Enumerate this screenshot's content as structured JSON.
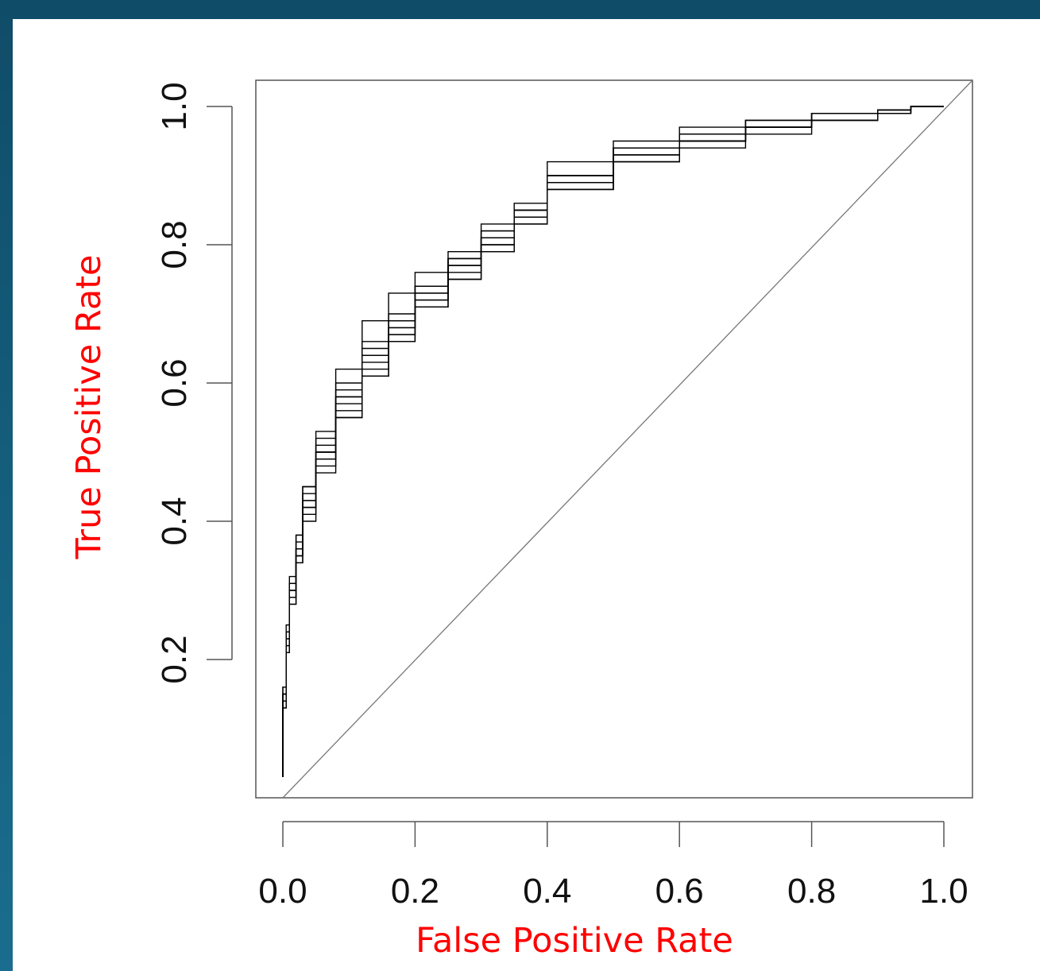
{
  "chart_data": {
    "type": "line",
    "title": "",
    "xlabel": "False Positive Rate",
    "ylabel": "True Positive Rate",
    "xlim": [
      0,
      1
    ],
    "ylim": [
      0,
      1
    ],
    "x_ticks": [
      "0.0",
      "0.2",
      "0.4",
      "0.6",
      "0.8",
      "1.0"
    ],
    "y_ticks": [
      "0.2",
      "0.4",
      "0.6",
      "0.8",
      "1.0"
    ],
    "grid": false,
    "legend": "none",
    "label_color": "#ff0000",
    "line_color": "#000000",
    "reference_line": {
      "x": [
        0,
        1
      ],
      "y": [
        0,
        1
      ]
    },
    "series": [
      {
        "x": [
          0,
          0.005,
          0.01,
          0.02,
          0.03,
          0.05,
          0.08,
          0.12,
          0.16,
          0.2,
          0.25,
          0.3,
          0.35,
          0.4,
          0.5,
          0.6,
          0.7,
          0.8,
          0.9,
          0.95,
          1.0
        ],
        "y": [
          0.03,
          0.16,
          0.24,
          0.31,
          0.38,
          0.45,
          0.53,
          0.62,
          0.69,
          0.73,
          0.76,
          0.79,
          0.83,
          0.86,
          0.92,
          0.95,
          0.97,
          0.98,
          0.99,
          0.995,
          1.0
        ]
      },
      {
        "x": [
          0,
          0.005,
          0.01,
          0.02,
          0.03,
          0.05,
          0.08,
          0.12,
          0.16,
          0.2,
          0.25,
          0.3,
          0.35,
          0.4,
          0.5,
          0.6,
          0.7,
          0.8,
          0.9,
          0.95,
          1.0
        ],
        "y": [
          0.03,
          0.14,
          0.22,
          0.29,
          0.35,
          0.42,
          0.49,
          0.57,
          0.63,
          0.67,
          0.72,
          0.76,
          0.8,
          0.84,
          0.89,
          0.93,
          0.95,
          0.97,
          0.99,
          0.995,
          1.0
        ]
      },
      {
        "x": [
          0,
          0.005,
          0.01,
          0.02,
          0.03,
          0.05,
          0.08,
          0.12,
          0.16,
          0.2,
          0.25,
          0.3,
          0.35,
          0.4,
          0.5,
          0.6,
          0.7,
          0.8,
          0.9,
          0.95,
          1.0
        ],
        "y": [
          0.03,
          0.15,
          0.23,
          0.3,
          0.36,
          0.43,
          0.51,
          0.6,
          0.66,
          0.7,
          0.74,
          0.78,
          0.82,
          0.85,
          0.9,
          0.94,
          0.96,
          0.98,
          0.99,
          0.995,
          1.0
        ]
      },
      {
        "x": [
          0,
          0.005,
          0.01,
          0.02,
          0.03,
          0.05,
          0.08,
          0.12,
          0.16,
          0.2,
          0.25,
          0.3,
          0.35,
          0.4,
          0.5,
          0.6,
          0.7,
          0.8,
          0.9,
          0.95,
          1.0
        ],
        "y": [
          0.03,
          0.13,
          0.21,
          0.28,
          0.34,
          0.41,
          0.48,
          0.55,
          0.61,
          0.66,
          0.71,
          0.75,
          0.79,
          0.83,
          0.88,
          0.92,
          0.95,
          0.97,
          0.98,
          0.99,
          1.0
        ]
      },
      {
        "x": [
          0,
          0.005,
          0.01,
          0.02,
          0.03,
          0.05,
          0.08,
          0.12,
          0.16,
          0.2,
          0.25,
          0.3,
          0.35,
          0.4,
          0.5,
          0.6,
          0.7,
          0.8,
          0.9,
          0.95,
          1.0
        ],
        "y": [
          0.03,
          0.15,
          0.24,
          0.31,
          0.37,
          0.44,
          0.5,
          0.58,
          0.64,
          0.69,
          0.74,
          0.78,
          0.82,
          0.85,
          0.9,
          0.94,
          0.96,
          0.98,
          0.99,
          0.995,
          1.0
        ]
      },
      {
        "x": [
          0,
          0.005,
          0.01,
          0.02,
          0.03,
          0.05,
          0.08,
          0.12,
          0.16,
          0.2,
          0.25,
          0.3,
          0.35,
          0.4,
          0.5,
          0.6,
          0.7,
          0.8,
          0.9,
          0.95,
          1.0
        ],
        "y": [
          0.03,
          0.14,
          0.22,
          0.29,
          0.35,
          0.42,
          0.49,
          0.56,
          0.62,
          0.67,
          0.72,
          0.77,
          0.81,
          0.84,
          0.89,
          0.93,
          0.95,
          0.97,
          0.98,
          0.99,
          1.0
        ]
      },
      {
        "x": [
          0,
          0.005,
          0.01,
          0.02,
          0.03,
          0.05,
          0.08,
          0.12,
          0.16,
          0.2,
          0.25,
          0.3,
          0.35,
          0.4,
          0.5,
          0.6,
          0.7,
          0.8,
          0.9,
          0.95,
          1.0
        ],
        "y": [
          0.03,
          0.16,
          0.25,
          0.32,
          0.38,
          0.45,
          0.52,
          0.59,
          0.65,
          0.69,
          0.74,
          0.78,
          0.81,
          0.84,
          0.88,
          0.92,
          0.94,
          0.96,
          0.98,
          0.99,
          1.0
        ]
      },
      {
        "x": [
          0,
          0.005,
          0.01,
          0.02,
          0.03,
          0.05,
          0.08,
          0.12,
          0.16,
          0.2,
          0.25,
          0.3,
          0.35,
          0.4,
          0.5,
          0.6,
          0.7,
          0.8,
          0.9,
          0.95,
          1.0
        ],
        "y": [
          0.03,
          0.14,
          0.23,
          0.3,
          0.36,
          0.42,
          0.5,
          0.58,
          0.64,
          0.68,
          0.73,
          0.77,
          0.81,
          0.85,
          0.9,
          0.94,
          0.96,
          0.97,
          0.99,
          0.995,
          1.0
        ]
      },
      {
        "x": [
          0,
          0.005,
          0.01,
          0.02,
          0.03,
          0.05,
          0.08,
          0.12,
          0.16,
          0.2,
          0.25,
          0.3,
          0.35,
          0.4,
          0.5,
          0.6,
          0.7,
          0.8,
          0.9,
          0.95,
          1.0
        ],
        "y": [
          0.03,
          0.13,
          0.21,
          0.28,
          0.34,
          0.4,
          0.47,
          0.55,
          0.61,
          0.66,
          0.71,
          0.75,
          0.79,
          0.83,
          0.88,
          0.92,
          0.95,
          0.97,
          0.98,
          0.99,
          1.0
        ]
      },
      {
        "x": [
          0,
          0.005,
          0.01,
          0.02,
          0.03,
          0.05,
          0.08,
          0.12,
          0.16,
          0.2,
          0.25,
          0.3,
          0.35,
          0.4,
          0.5,
          0.6,
          0.7,
          0.8,
          0.9,
          0.95,
          1.0
        ],
        "y": [
          0.03,
          0.15,
          0.24,
          0.31,
          0.36,
          0.43,
          0.5,
          0.58,
          0.64,
          0.68,
          0.73,
          0.77,
          0.8,
          0.84,
          0.89,
          0.93,
          0.95,
          0.97,
          0.98,
          0.99,
          1.0
        ]
      }
    ]
  }
}
